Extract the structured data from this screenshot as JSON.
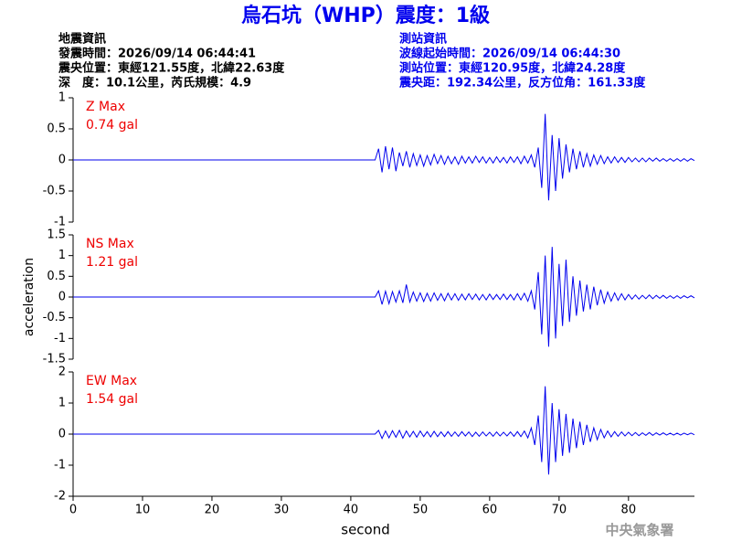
{
  "header": {
    "title": "烏石坑（WHP）震度：1級",
    "left": [
      "地震資訊",
      "發震時間：2026/09/14 06:44:41",
      "震央位置：東經121.55度，北緯22.63度",
      "深　度：10.1公里，芮氏規模：4.9"
    ],
    "right": [
      "測站資訊",
      "波線起始時間：2026/09/14 06:44:30",
      "測站位置：東經120.95度，北緯24.28度",
      "震央距：192.34公里，反方位角：161.33度"
    ],
    "footer": "中央氣象署"
  },
  "chart_data": [
    {
      "type": "line",
      "annotations": [
        "Z Max",
        "0.74 gal"
      ],
      "color": "#0000ee",
      "xlim": [
        0,
        89.5
      ],
      "ylim": [
        -1,
        1
      ],
      "yticks": [
        -1,
        -0.5,
        0,
        0.5,
        1
      ],
      "x": [
        0,
        43.5,
        44,
        44.5,
        45,
        45.5,
        46,
        46.5,
        47,
        47.5,
        48,
        48.5,
        49,
        49.5,
        50,
        50.5,
        51,
        51.5,
        52,
        52.5,
        53,
        53.5,
        54,
        54.5,
        55,
        55.5,
        56,
        56.5,
        57,
        57.5,
        58,
        58.5,
        59,
        59.5,
        60,
        60.5,
        61,
        61.5,
        62,
        62.5,
        63,
        63.5,
        64,
        64.5,
        65,
        65.5,
        66,
        66.5,
        67,
        67.5,
        68,
        68.5,
        69,
        69.5,
        70,
        70.5,
        71,
        71.5,
        72,
        72.5,
        73,
        73.5,
        74,
        74.5,
        75,
        75.5,
        76,
        76.5,
        77,
        77.5,
        78,
        78.5,
        79,
        79.5,
        80,
        80.5,
        81,
        81.5,
        82,
        82.5,
        83,
        83.5,
        84,
        84.5,
        85,
        85.5,
        86,
        86.5,
        87,
        87.5,
        88,
        88.5,
        89,
        89.5
      ],
      "values": [
        0,
        0,
        0.18,
        -0.2,
        0.22,
        -0.15,
        0.2,
        -0.18,
        0.12,
        -0.1,
        0.14,
        -0.12,
        0.1,
        -0.09,
        0.08,
        -0.1,
        0.07,
        -0.08,
        0.09,
        -0.06,
        0.07,
        -0.07,
        0.06,
        -0.06,
        0.05,
        -0.07,
        0.06,
        -0.05,
        0.05,
        -0.05,
        0.06,
        -0.04,
        0.05,
        -0.05,
        0.04,
        -0.05,
        0.05,
        -0.04,
        0.04,
        -0.05,
        0.05,
        -0.04,
        0.05,
        -0.06,
        0.06,
        -0.05,
        0.08,
        -0.12,
        0.2,
        -0.45,
        0.74,
        -0.65,
        0.4,
        -0.5,
        0.35,
        -0.3,
        0.25,
        -0.2,
        0.18,
        -0.15,
        0.14,
        -0.12,
        0.1,
        -0.1,
        0.08,
        -0.07,
        0.07,
        -0.06,
        0.05,
        -0.05,
        0.05,
        -0.04,
        0.04,
        -0.04,
        0.04,
        -0.03,
        0.03,
        -0.03,
        0.03,
        -0.03,
        0.03,
        -0.02,
        0.03,
        -0.02,
        0.02,
        -0.02,
        0.02,
        -0.02,
        0.02,
        -0.02,
        0.02,
        -0.02,
        0.02,
        -0.01
      ]
    },
    {
      "type": "line",
      "annotations": [
        "NS Max",
        "1.21 gal"
      ],
      "ylabel": "acceleration",
      "color": "#0000ee",
      "xlim": [
        0,
        89.5
      ],
      "ylim": [
        -1.5,
        1.5
      ],
      "yticks": [
        -1.5,
        -1,
        -0.5,
        0,
        0.5,
        1,
        1.5
      ],
      "x": [
        0,
        43.5,
        44,
        44.5,
        45,
        45.5,
        46,
        46.5,
        47,
        47.5,
        48,
        48.5,
        49,
        49.5,
        50,
        50.5,
        51,
        51.5,
        52,
        52.5,
        53,
        53.5,
        54,
        54.5,
        55,
        55.5,
        56,
        56.5,
        57,
        57.5,
        58,
        58.5,
        59,
        59.5,
        60,
        60.5,
        61,
        61.5,
        62,
        62.5,
        63,
        63.5,
        64,
        64.5,
        65,
        65.5,
        66,
        66.5,
        67,
        67.5,
        68,
        68.5,
        69,
        69.5,
        70,
        70.5,
        71,
        71.5,
        72,
        72.5,
        73,
        73.5,
        74,
        74.5,
        75,
        75.5,
        76,
        76.5,
        77,
        77.5,
        78,
        78.5,
        79,
        79.5,
        80,
        80.5,
        81,
        81.5,
        82,
        82.5,
        83,
        83.5,
        84,
        84.5,
        85,
        85.5,
        86,
        86.5,
        87,
        87.5,
        88,
        88.5,
        89,
        89.5
      ],
      "values": [
        0,
        0,
        0.15,
        -0.18,
        0.14,
        -0.16,
        0.13,
        -0.12,
        0.15,
        -0.14,
        0.3,
        -0.12,
        0.12,
        -0.1,
        0.1,
        -0.11,
        0.09,
        -0.1,
        0.1,
        -0.08,
        0.08,
        -0.09,
        0.09,
        -0.07,
        0.08,
        -0.08,
        0.07,
        -0.07,
        0.08,
        -0.06,
        0.07,
        -0.07,
        0.06,
        -0.07,
        0.07,
        -0.06,
        0.06,
        -0.06,
        0.07,
        -0.06,
        0.06,
        -0.07,
        0.08,
        -0.07,
        0.09,
        -0.1,
        0.15,
        -0.3,
        0.6,
        -0.9,
        1.0,
        -1.2,
        1.21,
        -1.0,
        0.8,
        -0.7,
        0.9,
        -0.6,
        0.5,
        -0.45,
        0.4,
        -0.35,
        0.3,
        -0.3,
        0.25,
        -0.2,
        0.18,
        -0.15,
        0.12,
        -0.1,
        0.1,
        -0.08,
        0.08,
        -0.07,
        0.06,
        -0.05,
        0.05,
        -0.05,
        0.04,
        -0.04,
        0.05,
        -0.04,
        0.04,
        -0.03,
        0.04,
        -0.03,
        0.03,
        -0.03,
        0.03,
        -0.03,
        0.03,
        -0.02,
        0.03,
        -0.02
      ]
    },
    {
      "type": "line",
      "annotations": [
        "EW Max",
        "1.54 gal"
      ],
      "xlabel": "second",
      "color": "#0000ee",
      "xlim": [
        0,
        89.5
      ],
      "ylim": [
        -2,
        2
      ],
      "yticks": [
        -2,
        -1,
        0,
        1,
        2
      ],
      "xticks": [
        0,
        10,
        20,
        30,
        40,
        50,
        60,
        70,
        80
      ],
      "x": [
        0,
        43.5,
        44,
        44.5,
        45,
        45.5,
        46,
        46.5,
        47,
        47.5,
        48,
        48.5,
        49,
        49.5,
        50,
        50.5,
        51,
        51.5,
        52,
        52.5,
        53,
        53.5,
        54,
        54.5,
        55,
        55.5,
        56,
        56.5,
        57,
        57.5,
        58,
        58.5,
        59,
        59.5,
        60,
        60.5,
        61,
        61.5,
        62,
        62.5,
        63,
        63.5,
        64,
        64.5,
        65,
        65.5,
        66,
        66.5,
        67,
        67.5,
        68,
        68.5,
        69,
        69.5,
        70,
        70.5,
        71,
        71.5,
        72,
        72.5,
        73,
        73.5,
        74,
        74.5,
        75,
        75.5,
        76,
        76.5,
        77,
        77.5,
        78,
        78.5,
        79,
        79.5,
        80,
        80.5,
        81,
        81.5,
        82,
        82.5,
        83,
        83.5,
        84,
        84.5,
        85,
        85.5,
        86,
        86.5,
        87,
        87.5,
        88,
        88.5,
        89,
        89.5
      ],
      "values": [
        0,
        0,
        0.12,
        -0.14,
        0.1,
        -0.12,
        0.11,
        -0.1,
        0.12,
        -0.13,
        0.1,
        -0.09,
        0.09,
        -0.1,
        0.1,
        -0.08,
        0.08,
        -0.09,
        0.09,
        -0.08,
        0.07,
        -0.08,
        0.08,
        -0.07,
        0.07,
        -0.07,
        0.08,
        -0.06,
        0.07,
        -0.08,
        0.06,
        -0.07,
        0.07,
        -0.06,
        0.06,
        -0.07,
        0.07,
        -0.06,
        0.06,
        -0.06,
        0.07,
        -0.07,
        0.08,
        -0.08,
        0.1,
        -0.12,
        0.2,
        -0.35,
        0.6,
        -0.9,
        1.54,
        -1.3,
        1.0,
        -0.9,
        0.8,
        -0.7,
        0.65,
        -0.6,
        0.5,
        -0.45,
        0.4,
        -0.35,
        0.3,
        -0.25,
        0.2,
        -0.18,
        0.15,
        -0.12,
        0.1,
        -0.09,
        0.08,
        -0.07,
        0.07,
        -0.06,
        0.06,
        -0.05,
        0.05,
        -0.05,
        0.04,
        -0.04,
        0.05,
        -0.04,
        0.04,
        -0.03,
        0.04,
        -0.03,
        0.03,
        -0.03,
        0.03,
        -0.03,
        0.03,
        -0.02,
        0.03,
        -0.02
      ]
    }
  ]
}
